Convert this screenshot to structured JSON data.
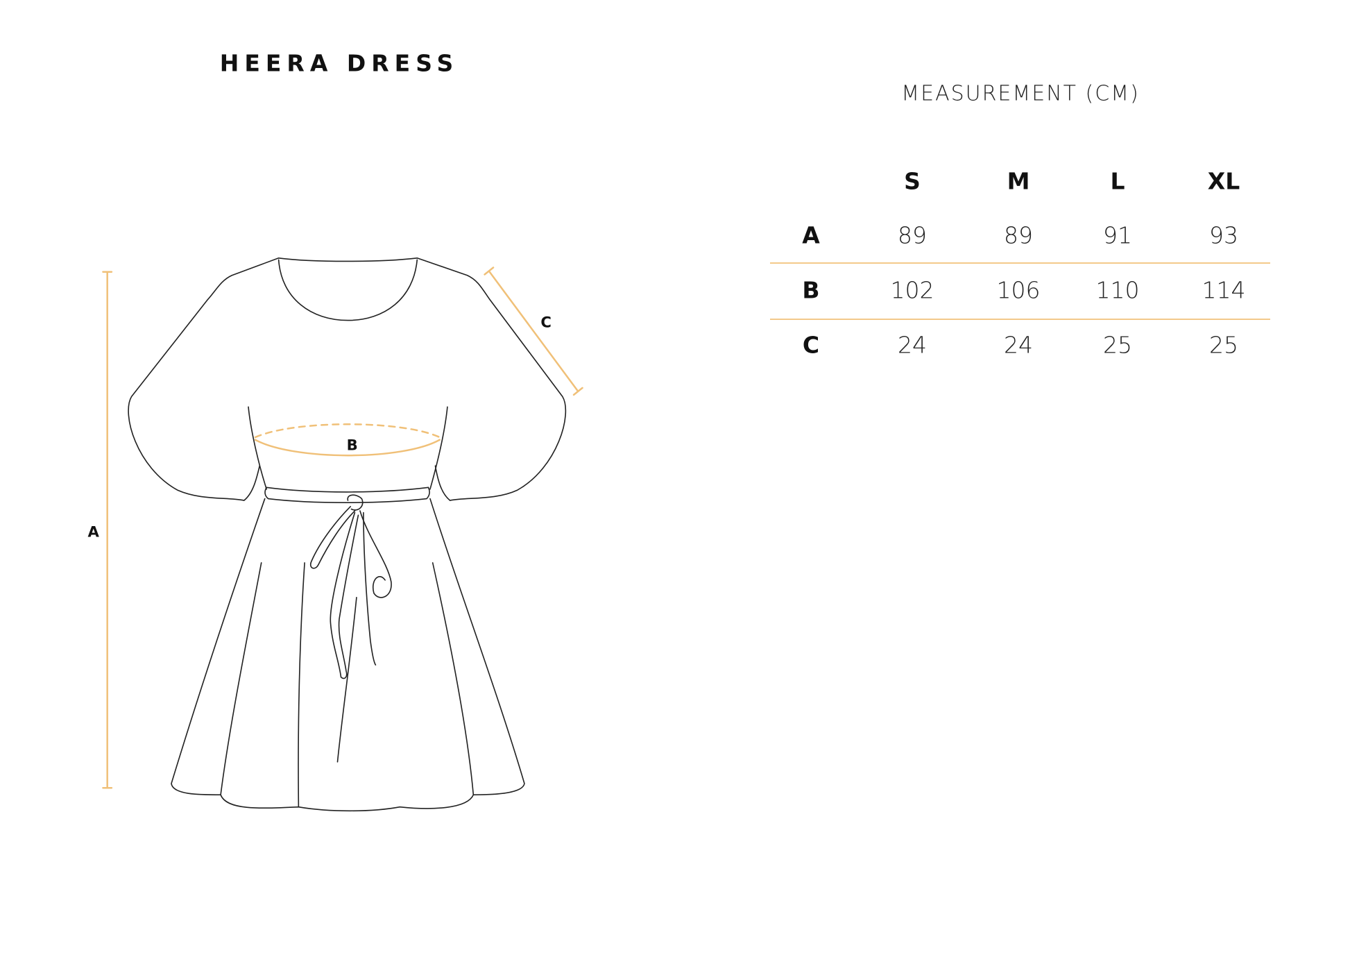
{
  "title": "HEERA DRESS",
  "table_title": "MEASUREMENT (CM)",
  "accent_color": "#f0c078",
  "diagram_labels": {
    "a": "A",
    "b": "B",
    "c": "C"
  },
  "table": {
    "columns": [
      "S",
      "M",
      "L",
      "XL"
    ],
    "rows": [
      {
        "label": "A",
        "values": [
          "89",
          "89",
          "91",
          "93"
        ]
      },
      {
        "label": "B",
        "values": [
          "102",
          "106",
          "110",
          "114"
        ]
      },
      {
        "label": "C",
        "values": [
          "24",
          "24",
          "25",
          "25"
        ]
      }
    ]
  }
}
